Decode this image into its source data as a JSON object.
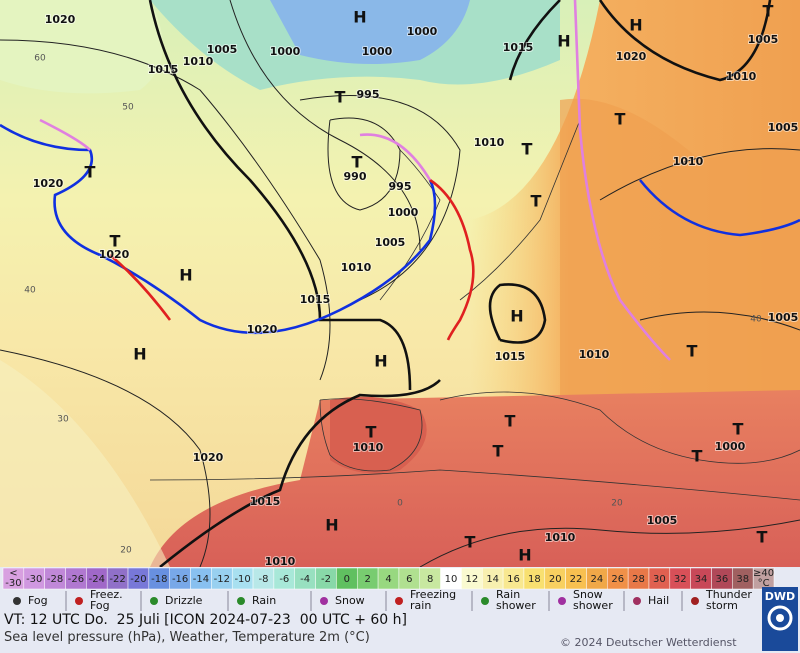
{
  "map": {
    "pressure_labels": [
      "1020",
      "1005",
      "1000",
      "1000",
      "1000",
      "1015",
      "1010",
      "1015",
      "1020",
      "1005",
      "1010",
      "995",
      "990",
      "995",
      "1010",
      "1000",
      "1005",
      "1010",
      "1015",
      "1010",
      "1005",
      "1005",
      "1020",
      "1020",
      "1020",
      "1015",
      "1010",
      "1010",
      "1020",
      "1015",
      "1010",
      "1010",
      "1005",
      "1000"
    ],
    "temperature_labels": [
      "60",
      "50",
      "40",
      "40",
      "30",
      "20",
      "0",
      "20"
    ],
    "centers": [
      "H",
      "H",
      "H",
      "T",
      "T",
      "T",
      "T",
      "T",
      "T",
      "H",
      "H",
      "H",
      "H",
      "T",
      "T",
      "T",
      "T",
      "T",
      "T",
      "T",
      "T",
      "H",
      "T",
      "H",
      "T"
    ]
  },
  "colorbar": {
    "items": [
      {
        "label": "<",
        "sub": "-30",
        "color": "#d8a0e0"
      },
      {
        "label": "-30",
        "color": "#d098e0"
      },
      {
        "label": "-28",
        "color": "#c088d8"
      },
      {
        "label": "-26",
        "color": "#b078d0"
      },
      {
        "label": "-24",
        "color": "#a068c8"
      },
      {
        "label": "-22",
        "color": "#9070c8"
      },
      {
        "label": "-20",
        "color": "#7878d8"
      },
      {
        "label": "-18",
        "color": "#6890e0"
      },
      {
        "label": "-16",
        "color": "#78a8e8"
      },
      {
        "label": "-14",
        "color": "#88c0f0"
      },
      {
        "label": "-12",
        "color": "#98d0f0"
      },
      {
        "label": "-10",
        "color": "#a8e0f0"
      },
      {
        "label": "-8",
        "color": "#b8e8e8"
      },
      {
        "label": "-6",
        "color": "#a8e8d8"
      },
      {
        "label": "-4",
        "color": "#98e0c0"
      },
      {
        "label": "-2",
        "color": "#88d8a8"
      },
      {
        "label": "0",
        "color": "#60c060"
      },
      {
        "label": "2",
        "color": "#78cc70"
      },
      {
        "label": "4",
        "color": "#98d880"
      },
      {
        "label": "6",
        "color": "#b0e090"
      },
      {
        "label": "8",
        "color": "#c8e8a0"
      },
      {
        "label": "10",
        "color": "#ffffff"
      },
      {
        "label": "12",
        "color": "#fafad0"
      },
      {
        "label": "14",
        "color": "#f8f0b0"
      },
      {
        "label": "16",
        "color": "#f8e890"
      },
      {
        "label": "18",
        "color": "#f8e070"
      },
      {
        "label": "20",
        "color": "#f8d060"
      },
      {
        "label": "22",
        "color": "#f8c050"
      },
      {
        "label": "24",
        "color": "#f0a848"
      },
      {
        "label": "26",
        "color": "#f09048"
      },
      {
        "label": "28",
        "color": "#e87848"
      },
      {
        "label": "30",
        "color": "#e06050"
      },
      {
        "label": "32",
        "color": "#d85058"
      },
      {
        "label": "34",
        "color": "#c84858"
      },
      {
        "label": "36",
        "color": "#b04858"
      },
      {
        "label": "38",
        "color": "#a06060"
      },
      {
        "label": "≥40",
        "sub": "°C",
        "color": "#c0a0a0"
      }
    ]
  },
  "legend": [
    {
      "lines": [
        "Fog"
      ],
      "color": "#333"
    },
    {
      "lines": [
        "Freez.",
        "Fog"
      ],
      "color": "#c02020"
    },
    {
      "lines": [
        "Drizzle"
      ],
      "color": "#2a8a2a"
    },
    {
      "lines": [
        "Rain"
      ],
      "color": "#2a8a2a"
    },
    {
      "lines": [
        "Snow"
      ],
      "color": "#a030a0"
    },
    {
      "lines": [
        "Freezing",
        "rain"
      ],
      "color": "#c02020"
    },
    {
      "lines": [
        "Rain",
        "shower"
      ],
      "color": "#2a8a2a"
    },
    {
      "lines": [
        "Snow",
        "shower"
      ],
      "color": "#a030a0"
    },
    {
      "lines": [
        "Hail"
      ],
      "color": "#a03060"
    },
    {
      "lines": [
        "Thunder",
        "storm"
      ],
      "color": "#a02020"
    }
  ],
  "footer": {
    "valid_time": "VT: 12 UTC Do.  25 Juli [ICON 2024-07-23  00 UTC + 60 h]",
    "description": "Sea level pressure (hPa), Weather, Temperature 2m (°C)",
    "copyright": "© 2024 Deutscher Wetterdienst",
    "logo": "DWD"
  }
}
